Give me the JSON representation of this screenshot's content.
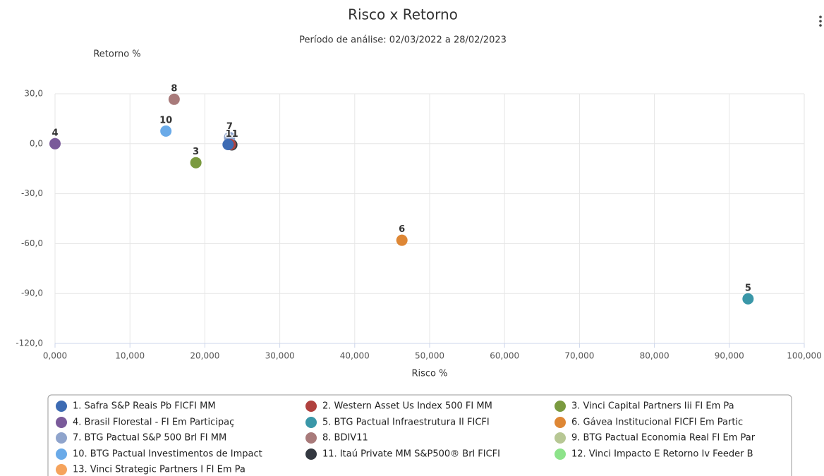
{
  "chart_data": {
    "type": "scatter",
    "title": "Risco x Retorno",
    "subtitle": "Período de análise: 02/03/2022 a 28/02/2023",
    "x_label": "Risco %",
    "y_label": "Retorno %",
    "xlim": [
      0,
      100
    ],
    "ylim": [
      -120,
      30
    ],
    "grid": true,
    "xticks": [
      {
        "value": 0,
        "label": "0,000"
      },
      {
        "value": 10,
        "label": "10,000"
      },
      {
        "value": 20,
        "label": "20,000"
      },
      {
        "value": 30,
        "label": "30,000"
      },
      {
        "value": 40,
        "label": "40,000"
      },
      {
        "value": 50,
        "label": "50,000"
      },
      {
        "value": 60,
        "label": "60,000"
      },
      {
        "value": 70,
        "label": "70,000"
      },
      {
        "value": 80,
        "label": "80,000"
      },
      {
        "value": 90,
        "label": "90,000"
      },
      {
        "value": 100,
        "label": "100,000"
      }
    ],
    "yticks": [
      {
        "value": 30,
        "label": "30,0"
      },
      {
        "value": 0,
        "label": "0,0"
      },
      {
        "value": -30,
        "label": "-30,0"
      },
      {
        "value": -60,
        "label": "-60,0"
      },
      {
        "value": -90,
        "label": "-90,0"
      },
      {
        "value": -120,
        "label": "-120,0"
      }
    ],
    "series": [
      {
        "name": "1. Safra S&P Reais Pb FICFI MM",
        "color": "#3d6bb3",
        "x": 23.1,
        "y": -0.5,
        "label": "1"
      },
      {
        "name": "2. Western Asset Us Index 500 FI MM",
        "color": "#b0413e",
        "x": 23.4,
        "y": -0.5
      },
      {
        "name": "3. Vinci Capital Partners Iii FI Em Pa",
        "color": "#7a9a3f",
        "x": 18.8,
        "y": -11.4,
        "label": "3"
      },
      {
        "name": "4. Brasil Florestal - FI Em Participaç",
        "color": "#7a5a9a",
        "x": 0,
        "y": 0,
        "label": "4"
      },
      {
        "name": "5. BTG Pactual Infraestrutura II FICFI",
        "color": "#3a97a8",
        "x": 92.5,
        "y": -93.2,
        "label": "5"
      },
      {
        "name": "6. Gávea Institucional FICFI Em Partic",
        "color": "#de8735",
        "x": 46.3,
        "y": -58.0,
        "label": "6"
      },
      {
        "name": "7. BTG Pactual S&P 500 Brl FI MM",
        "color": "#8fa4cc",
        "x": 23.3,
        "y": 3.8,
        "label": "7"
      },
      {
        "name": "8. BDIV11",
        "color": "#a87a7a",
        "x": 15.9,
        "y": 26.7,
        "label": "8"
      },
      {
        "name": "9. BTG Pactual Economia Real FI Em Par",
        "color": "#b7c794",
        "x": 23.4,
        "y": -0.5
      },
      {
        "name": "10. BTG Pactual Investimentos de Impact",
        "color": "#6aaae8",
        "x": 14.8,
        "y": 7.6,
        "label": "10"
      },
      {
        "name": "11. Itaú Private MM S&P500® Brl FICFI",
        "color": "#333840",
        "x": 23.6,
        "y": -0.7,
        "label": "11"
      },
      {
        "name": "12. Vinci Impacto E Retorno Iv Feeder B",
        "color": "#8de38a",
        "x": 23.4,
        "y": -0.5
      },
      {
        "name": "13. Vinci Strategic Partners I FI Em Pa",
        "color": "#f5a35c",
        "x": 23.4,
        "y": -0.5
      }
    ]
  }
}
